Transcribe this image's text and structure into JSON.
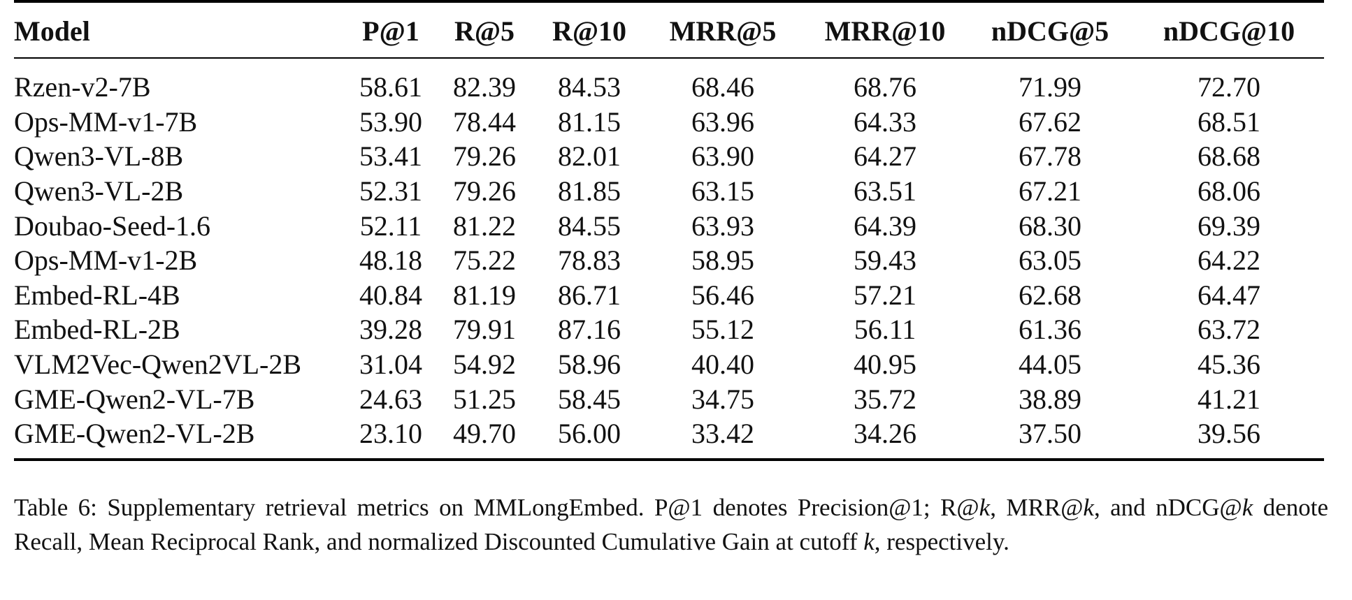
{
  "table": {
    "columns": [
      "Model",
      "P@1",
      "R@5",
      "R@10",
      "MRR@5",
      "MRR@10",
      "nDCG@5",
      "nDCG@10"
    ],
    "rows": [
      [
        "Rzen-v2-7B",
        "58.61",
        "82.39",
        "84.53",
        "68.46",
        "68.76",
        "71.99",
        "72.70"
      ],
      [
        "Ops-MM-v1-7B",
        "53.90",
        "78.44",
        "81.15",
        "63.96",
        "64.33",
        "67.62",
        "68.51"
      ],
      [
        "Qwen3-VL-8B",
        "53.41",
        "79.26",
        "82.01",
        "63.90",
        "64.27",
        "67.78",
        "68.68"
      ],
      [
        "Qwen3-VL-2B",
        "52.31",
        "79.26",
        "81.85",
        "63.15",
        "63.51",
        "67.21",
        "68.06"
      ],
      [
        "Doubao-Seed-1.6",
        "52.11",
        "81.22",
        "84.55",
        "63.93",
        "64.39",
        "68.30",
        "69.39"
      ],
      [
        "Ops-MM-v1-2B",
        "48.18",
        "75.22",
        "78.83",
        "58.95",
        "59.43",
        "63.05",
        "64.22"
      ],
      [
        "Embed-RL-4B",
        "40.84",
        "81.19",
        "86.71",
        "56.46",
        "57.21",
        "62.68",
        "64.47"
      ],
      [
        "Embed-RL-2B",
        "39.28",
        "79.91",
        "87.16",
        "55.12",
        "56.11",
        "61.36",
        "63.72"
      ],
      [
        "VLM2Vec-Qwen2VL-2B",
        "31.04",
        "54.92",
        "58.96",
        "40.40",
        "40.95",
        "44.05",
        "45.36"
      ],
      [
        "GME-Qwen2-VL-7B",
        "24.63",
        "51.25",
        "58.45",
        "34.75",
        "35.72",
        "38.89",
        "41.21"
      ],
      [
        "GME-Qwen2-VL-2B",
        "23.10",
        "49.70",
        "56.00",
        "33.42",
        "34.26",
        "37.50",
        "39.56"
      ]
    ]
  },
  "caption": {
    "label": "Table 6:",
    "part1": "Supplementary retrieval metrics on MMLongEmbed.  P@1 denotes Precision@1; R@",
    "k1": "k",
    "part2": ", MRR@",
    "k2": "k",
    "part3": ", and nDCG@",
    "k3": "k",
    "part4": " denote Recall, Mean Reciprocal Rank, and normalized Discounted Cumulative Gain at cutoff ",
    "k4": "k",
    "part5": ", respectively."
  }
}
